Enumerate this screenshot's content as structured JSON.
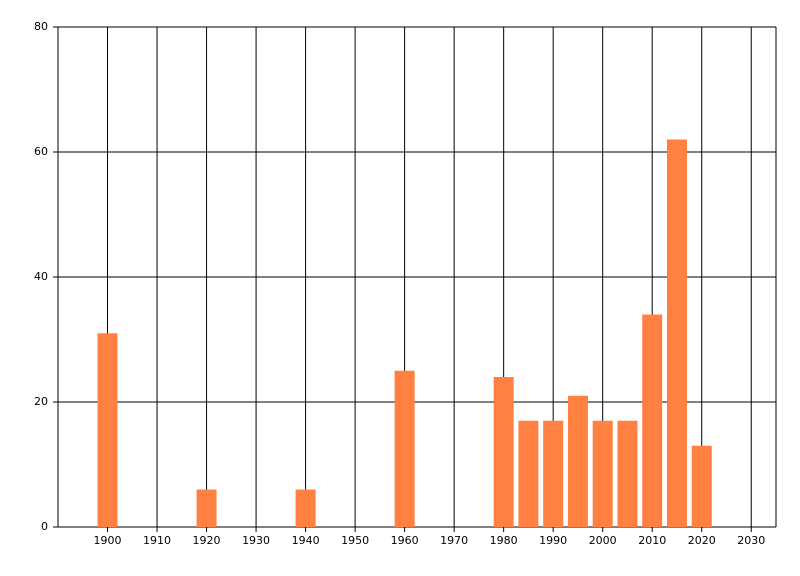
{
  "chart_data": {
    "type": "bar",
    "x": [
      1900,
      1920,
      1940,
      1960,
      1980,
      1985,
      1990,
      1995,
      2000,
      2005,
      2010,
      2015,
      2020
    ],
    "values": [
      31,
      6,
      6,
      25,
      24,
      17,
      17,
      21,
      17,
      17,
      34,
      62,
      13
    ],
    "color": "#ff8040",
    "xlim": [
      1890,
      2035
    ],
    "xticks": [
      1900,
      1910,
      1920,
      1930,
      1940,
      1950,
      1960,
      1970,
      1980,
      1990,
      2000,
      2010,
      2020,
      2030
    ],
    "ylim": [
      0,
      80
    ],
    "yticks": [
      0,
      20,
      40,
      60,
      80
    ],
    "grid": true
  }
}
